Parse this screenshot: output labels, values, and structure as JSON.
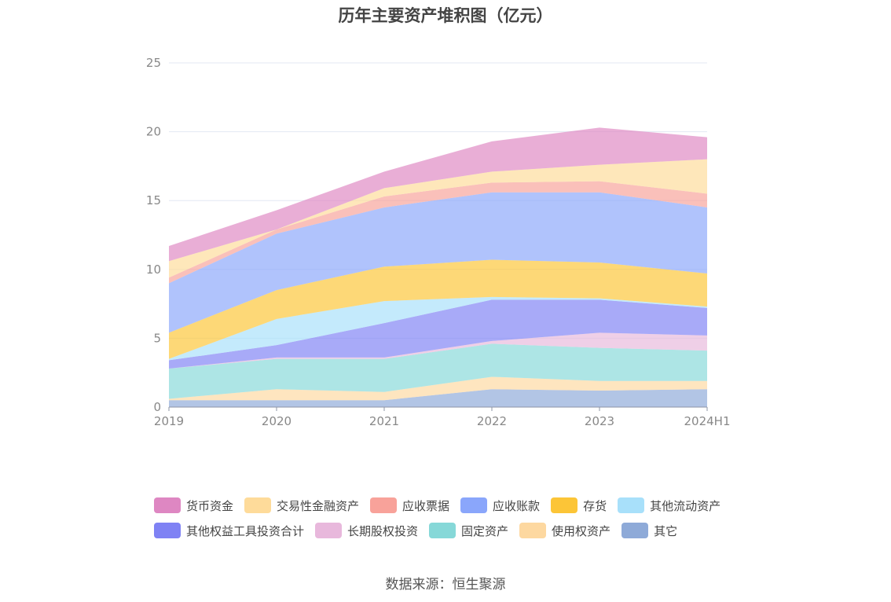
{
  "chart_data": {
    "type": "area",
    "stacked": true,
    "title": "历年主要资产堆积图（亿元）",
    "categories": [
      "2019",
      "2020",
      "2021",
      "2022",
      "2023",
      "2024H1"
    ],
    "ylim": [
      0,
      25
    ],
    "yticks": [
      0,
      5,
      10,
      15,
      20,
      25
    ],
    "grid": true,
    "legend_position": "bottom",
    "series": [
      {
        "name": "其它",
        "color": "#8eaad8",
        "values": [
          0.5,
          0.5,
          0.5,
          1.3,
          1.2,
          1.3
        ]
      },
      {
        "name": "使用权资产",
        "color": "#fdd8a0",
        "values": [
          0.1,
          0.8,
          0.6,
          0.9,
          0.7,
          0.6
        ]
      },
      {
        "name": "固定资产",
        "color": "#86d8d8",
        "values": [
          2.2,
          2.2,
          2.4,
          2.4,
          2.4,
          2.2
        ]
      },
      {
        "name": "长期股权投资",
        "color": "#e8b8dc",
        "values": [
          0.0,
          0.1,
          0.1,
          0.2,
          1.1,
          1.1
        ]
      },
      {
        "name": "其他权益工具投资合计",
        "color": "#7f82f4",
        "values": [
          0.6,
          0.9,
          2.5,
          3.0,
          2.4,
          2.0
        ]
      },
      {
        "name": "其他流动资产",
        "color": "#a8e0fa",
        "values": [
          0.1,
          1.9,
          1.6,
          0.2,
          0.1,
          0.1
        ]
      },
      {
        "name": "存货",
        "color": "#fcc537",
        "values": [
          1.9,
          2.1,
          2.5,
          2.7,
          2.6,
          2.4
        ]
      },
      {
        "name": "应收账款",
        "color": "#8aa6fb",
        "values": [
          3.6,
          4.1,
          4.3,
          4.9,
          5.1,
          4.8
        ]
      },
      {
        "name": "应收票据",
        "color": "#f8a29a",
        "values": [
          0.4,
          0.3,
          0.8,
          0.7,
          0.8,
          1.0
        ]
      },
      {
        "name": "交易性金融资产",
        "color": "#fedb9a",
        "values": [
          1.2,
          0.0,
          0.6,
          0.8,
          1.2,
          2.5
        ]
      },
      {
        "name": "货币资金",
        "color": "#de87c2",
        "values": [
          1.1,
          1.4,
          1.2,
          2.2,
          2.7,
          1.6
        ]
      }
    ]
  },
  "legend_items": [
    {
      "name": "货币资金",
      "color": "#de87c2"
    },
    {
      "name": "交易性金融资产",
      "color": "#fedb9a"
    },
    {
      "name": "应收票据",
      "color": "#f8a29a"
    },
    {
      "name": "应收账款",
      "color": "#8aa6fb"
    },
    {
      "name": "存货",
      "color": "#fcc537"
    },
    {
      "name": "其他流动资产",
      "color": "#a8e0fa"
    },
    {
      "name": "其他权益工具投资合计",
      "color": "#7f82f4"
    },
    {
      "name": "长期股权投资",
      "color": "#e8b8dc"
    },
    {
      "name": "固定资产",
      "color": "#86d8d8"
    },
    {
      "name": "使用权资产",
      "color": "#fdd8a0"
    },
    {
      "name": "其它",
      "color": "#8eaad8"
    }
  ],
  "source": "数据来源：恒生聚源"
}
